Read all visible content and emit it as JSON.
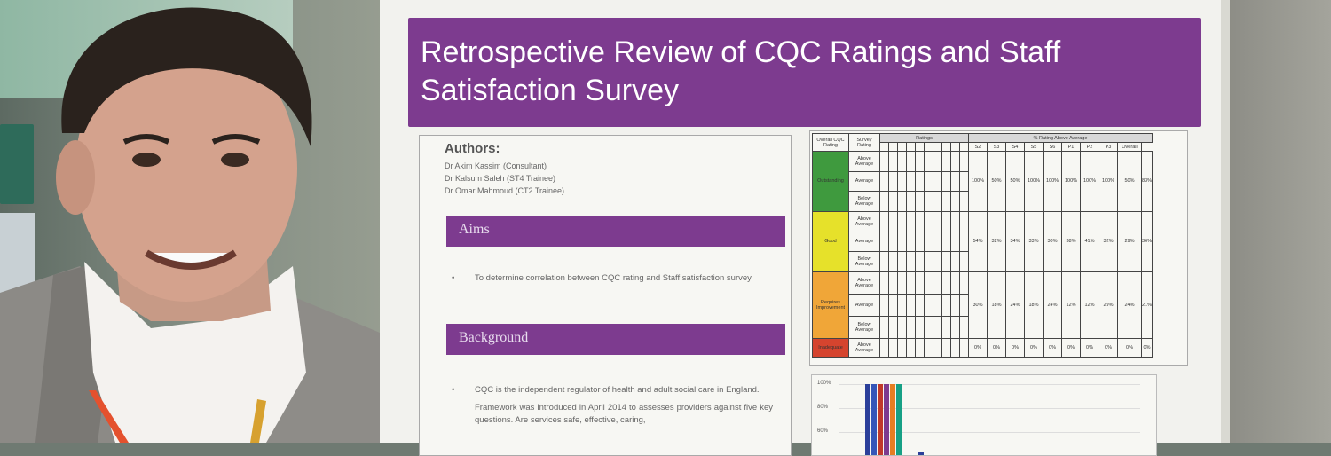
{
  "poster": {
    "title": "Retrospective Review of CQC Ratings and Staff Satisfaction Survey",
    "authors_heading": "Authors:",
    "authors": [
      "Dr Akim Kassim (Consultant)",
      "Dr Kalsum Saleh (ST4 Trainee)",
      "Dr Omar Mahmoud (CT2 Trainee)"
    ],
    "aims_heading": "Aims",
    "aims_text": "To determine correlation between CQC rating and Staff satisfaction survey",
    "background_heading": "Background",
    "background_text_1": "CQC is the independent regulator of health and adult social care in England.",
    "background_text_2": "Framework was introduced in April 2014 to assesses providers against five key questions. Are services safe, effective, caring,"
  },
  "table": {
    "col_overall": "Overall CQC Rating",
    "col_survey": "Survey Rating",
    "hdr_ratings": "Ratings",
    "hdr_pct": "% Rating Above Average",
    "pct_cols": [
      "S2",
      "S3",
      "S4",
      "S5",
      "S6",
      "P1",
      "P2",
      "P3",
      "Overall"
    ],
    "rows": [
      {
        "rating": "Outstanding",
        "color": "#3f9a3e",
        "survey": [
          "Above Average",
          "Average",
          "Below Average"
        ],
        "pct": [
          "100%",
          "50%",
          "50%",
          "100%",
          "100%",
          "100%",
          "100%",
          "100%",
          "50%"
        ],
        "overall": "83%"
      },
      {
        "rating": "Good",
        "color": "#e6e12a",
        "survey": [
          "Above Average",
          "Average",
          "Below Average"
        ],
        "pct": [
          "54%",
          "32%",
          "34%",
          "33%",
          "30%",
          "38%",
          "41%",
          "32%",
          "29%"
        ],
        "overall": "36%"
      },
      {
        "rating": "Requires Improvement",
        "color": "#f0a638",
        "survey": [
          "Above Average",
          "Average",
          "Below Average"
        ],
        "pct": [
          "30%",
          "18%",
          "24%",
          "18%",
          "24%",
          "12%",
          "12%",
          "29%",
          "24%"
        ],
        "overall": "21%"
      },
      {
        "rating": "Inadequate",
        "color": "#d5442e",
        "survey": [
          "Above Average"
        ],
        "pct": [
          "0%",
          "0%",
          "0%",
          "0%",
          "0%",
          "0%",
          "0%",
          "0%",
          "0%"
        ],
        "overall": "0%"
      }
    ]
  },
  "chart": {
    "y_ticks": [
      "100%",
      "80%",
      "60%"
    ],
    "series_colors": [
      "#2b3f9a",
      "#3556b8",
      "#c0392b",
      "#7d3b8f",
      "#e67e22",
      "#16a085"
    ],
    "values": [
      100,
      100,
      100,
      100,
      100,
      100,
      4
    ]
  },
  "colors": {
    "poster_purple": "#7d3b8f",
    "poster_bg": "#f2f2ee"
  }
}
